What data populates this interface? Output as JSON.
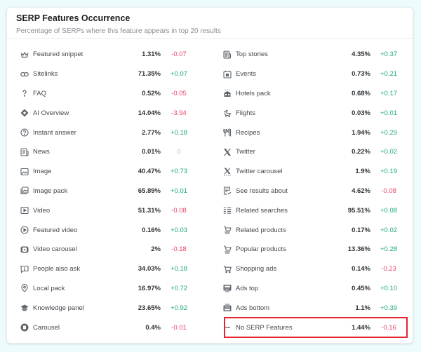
{
  "card": {
    "title": "SERP Features Occurrence",
    "subtitle": "Percentage of SERPs where this feature appears in top 20 results"
  },
  "colors": {
    "positive": "#1fa97a",
    "negative": "#e8466b",
    "neutral": "#b5babf",
    "highlight_border": "#e4242c"
  },
  "left_column": [
    {
      "icon": "crown-icon",
      "label": "Featured snippet",
      "pct": "1.31%",
      "delta": "-0.07",
      "trend": "neg"
    },
    {
      "icon": "link-icon",
      "label": "Sitelinks",
      "pct": "71.35%",
      "delta": "+0.07",
      "trend": "pos"
    },
    {
      "icon": "question-icon",
      "label": "FAQ",
      "pct": "0.52%",
      "delta": "-0.05",
      "trend": "neg"
    },
    {
      "icon": "ai-diamond-icon",
      "label": "AI Overview",
      "pct": "14.04%",
      "delta": "-3.94",
      "trend": "neg"
    },
    {
      "icon": "question-circle-icon",
      "label": "Instant answer",
      "pct": "2.77%",
      "delta": "+0.18",
      "trend": "pos"
    },
    {
      "icon": "news-icon",
      "label": "News",
      "pct": "0.01%",
      "delta": "0",
      "trend": "zero"
    },
    {
      "icon": "image-icon",
      "label": "Image",
      "pct": "40.47%",
      "delta": "+0.73",
      "trend": "pos"
    },
    {
      "icon": "image-pack-icon",
      "label": "Image pack",
      "pct": "65.89%",
      "delta": "+0.01",
      "trend": "pos"
    },
    {
      "icon": "video-icon",
      "label": "Video",
      "pct": "51.31%",
      "delta": "-0.08",
      "trend": "neg"
    },
    {
      "icon": "play-circle-icon",
      "label": "Featured video",
      "pct": "0.16%",
      "delta": "+0.03",
      "trend": "pos"
    },
    {
      "icon": "video-carousel-icon",
      "label": "Video carousel",
      "pct": "2%",
      "delta": "-0.18",
      "trend": "neg"
    },
    {
      "icon": "chat-question-icon",
      "label": "People also ask",
      "pct": "34.03%",
      "delta": "+0.18",
      "trend": "pos"
    },
    {
      "icon": "map-pin-icon",
      "label": "Local pack",
      "pct": "16.97%",
      "delta": "+0.72",
      "trend": "pos"
    },
    {
      "icon": "graduation-cap-icon",
      "label": "Knowledge panel",
      "pct": "23.65%",
      "delta": "+0.92",
      "trend": "pos"
    },
    {
      "icon": "carousel-icon",
      "label": "Carousel",
      "pct": "0.4%",
      "delta": "-0.01",
      "trend": "neg"
    }
  ],
  "right_column": [
    {
      "icon": "top-stories-icon",
      "label": "Top stories",
      "pct": "4.35%",
      "delta": "+0.37",
      "trend": "pos"
    },
    {
      "icon": "calendar-icon",
      "label": "Events",
      "pct": "0.73%",
      "delta": "+0.21",
      "trend": "pos"
    },
    {
      "icon": "hotel-icon",
      "label": "Hotels pack",
      "pct": "0.68%",
      "delta": "+0.17",
      "trend": "pos"
    },
    {
      "icon": "plane-icon",
      "label": "Flights",
      "pct": "0.03%",
      "delta": "+0.01",
      "trend": "pos"
    },
    {
      "icon": "fork-knife-icon",
      "label": "Recipes",
      "pct": "1.94%",
      "delta": "+0.29",
      "trend": "pos"
    },
    {
      "icon": "x-logo-icon",
      "label": "Twitter",
      "pct": "0.22%",
      "delta": "+0.02",
      "trend": "pos"
    },
    {
      "icon": "x-carousel-icon",
      "label": "Twitter carousel",
      "pct": "1.9%",
      "delta": "+0.19",
      "trend": "pos"
    },
    {
      "icon": "document-check-icon",
      "label": "See results about",
      "pct": "4.62%",
      "delta": "-0.08",
      "trend": "neg"
    },
    {
      "icon": "list-icon",
      "label": "Related searches",
      "pct": "95.51%",
      "delta": "+0.08",
      "trend": "pos"
    },
    {
      "icon": "cart-stack-icon",
      "label": "Related products",
      "pct": "0.17%",
      "delta": "+0.02",
      "trend": "pos"
    },
    {
      "icon": "cart-stack-icon",
      "label": "Popular products",
      "pct": "13.36%",
      "delta": "+0.28",
      "trend": "pos"
    },
    {
      "icon": "cart-icon",
      "label": "Shopping ads",
      "pct": "0.14%",
      "delta": "-0.23",
      "trend": "neg"
    },
    {
      "icon": "ads-top-icon",
      "label": "Ads top",
      "pct": "0.45%",
      "delta": "+0.10",
      "trend": "pos"
    },
    {
      "icon": "ads-bottom-icon",
      "label": "Ads bottom",
      "pct": "1.1%",
      "delta": "+0.39",
      "trend": "pos"
    },
    {
      "icon": "dash-icon",
      "label": "No SERP Features",
      "pct": "1.44%",
      "delta": "-0.16",
      "trend": "neg",
      "highlighted": true
    }
  ]
}
